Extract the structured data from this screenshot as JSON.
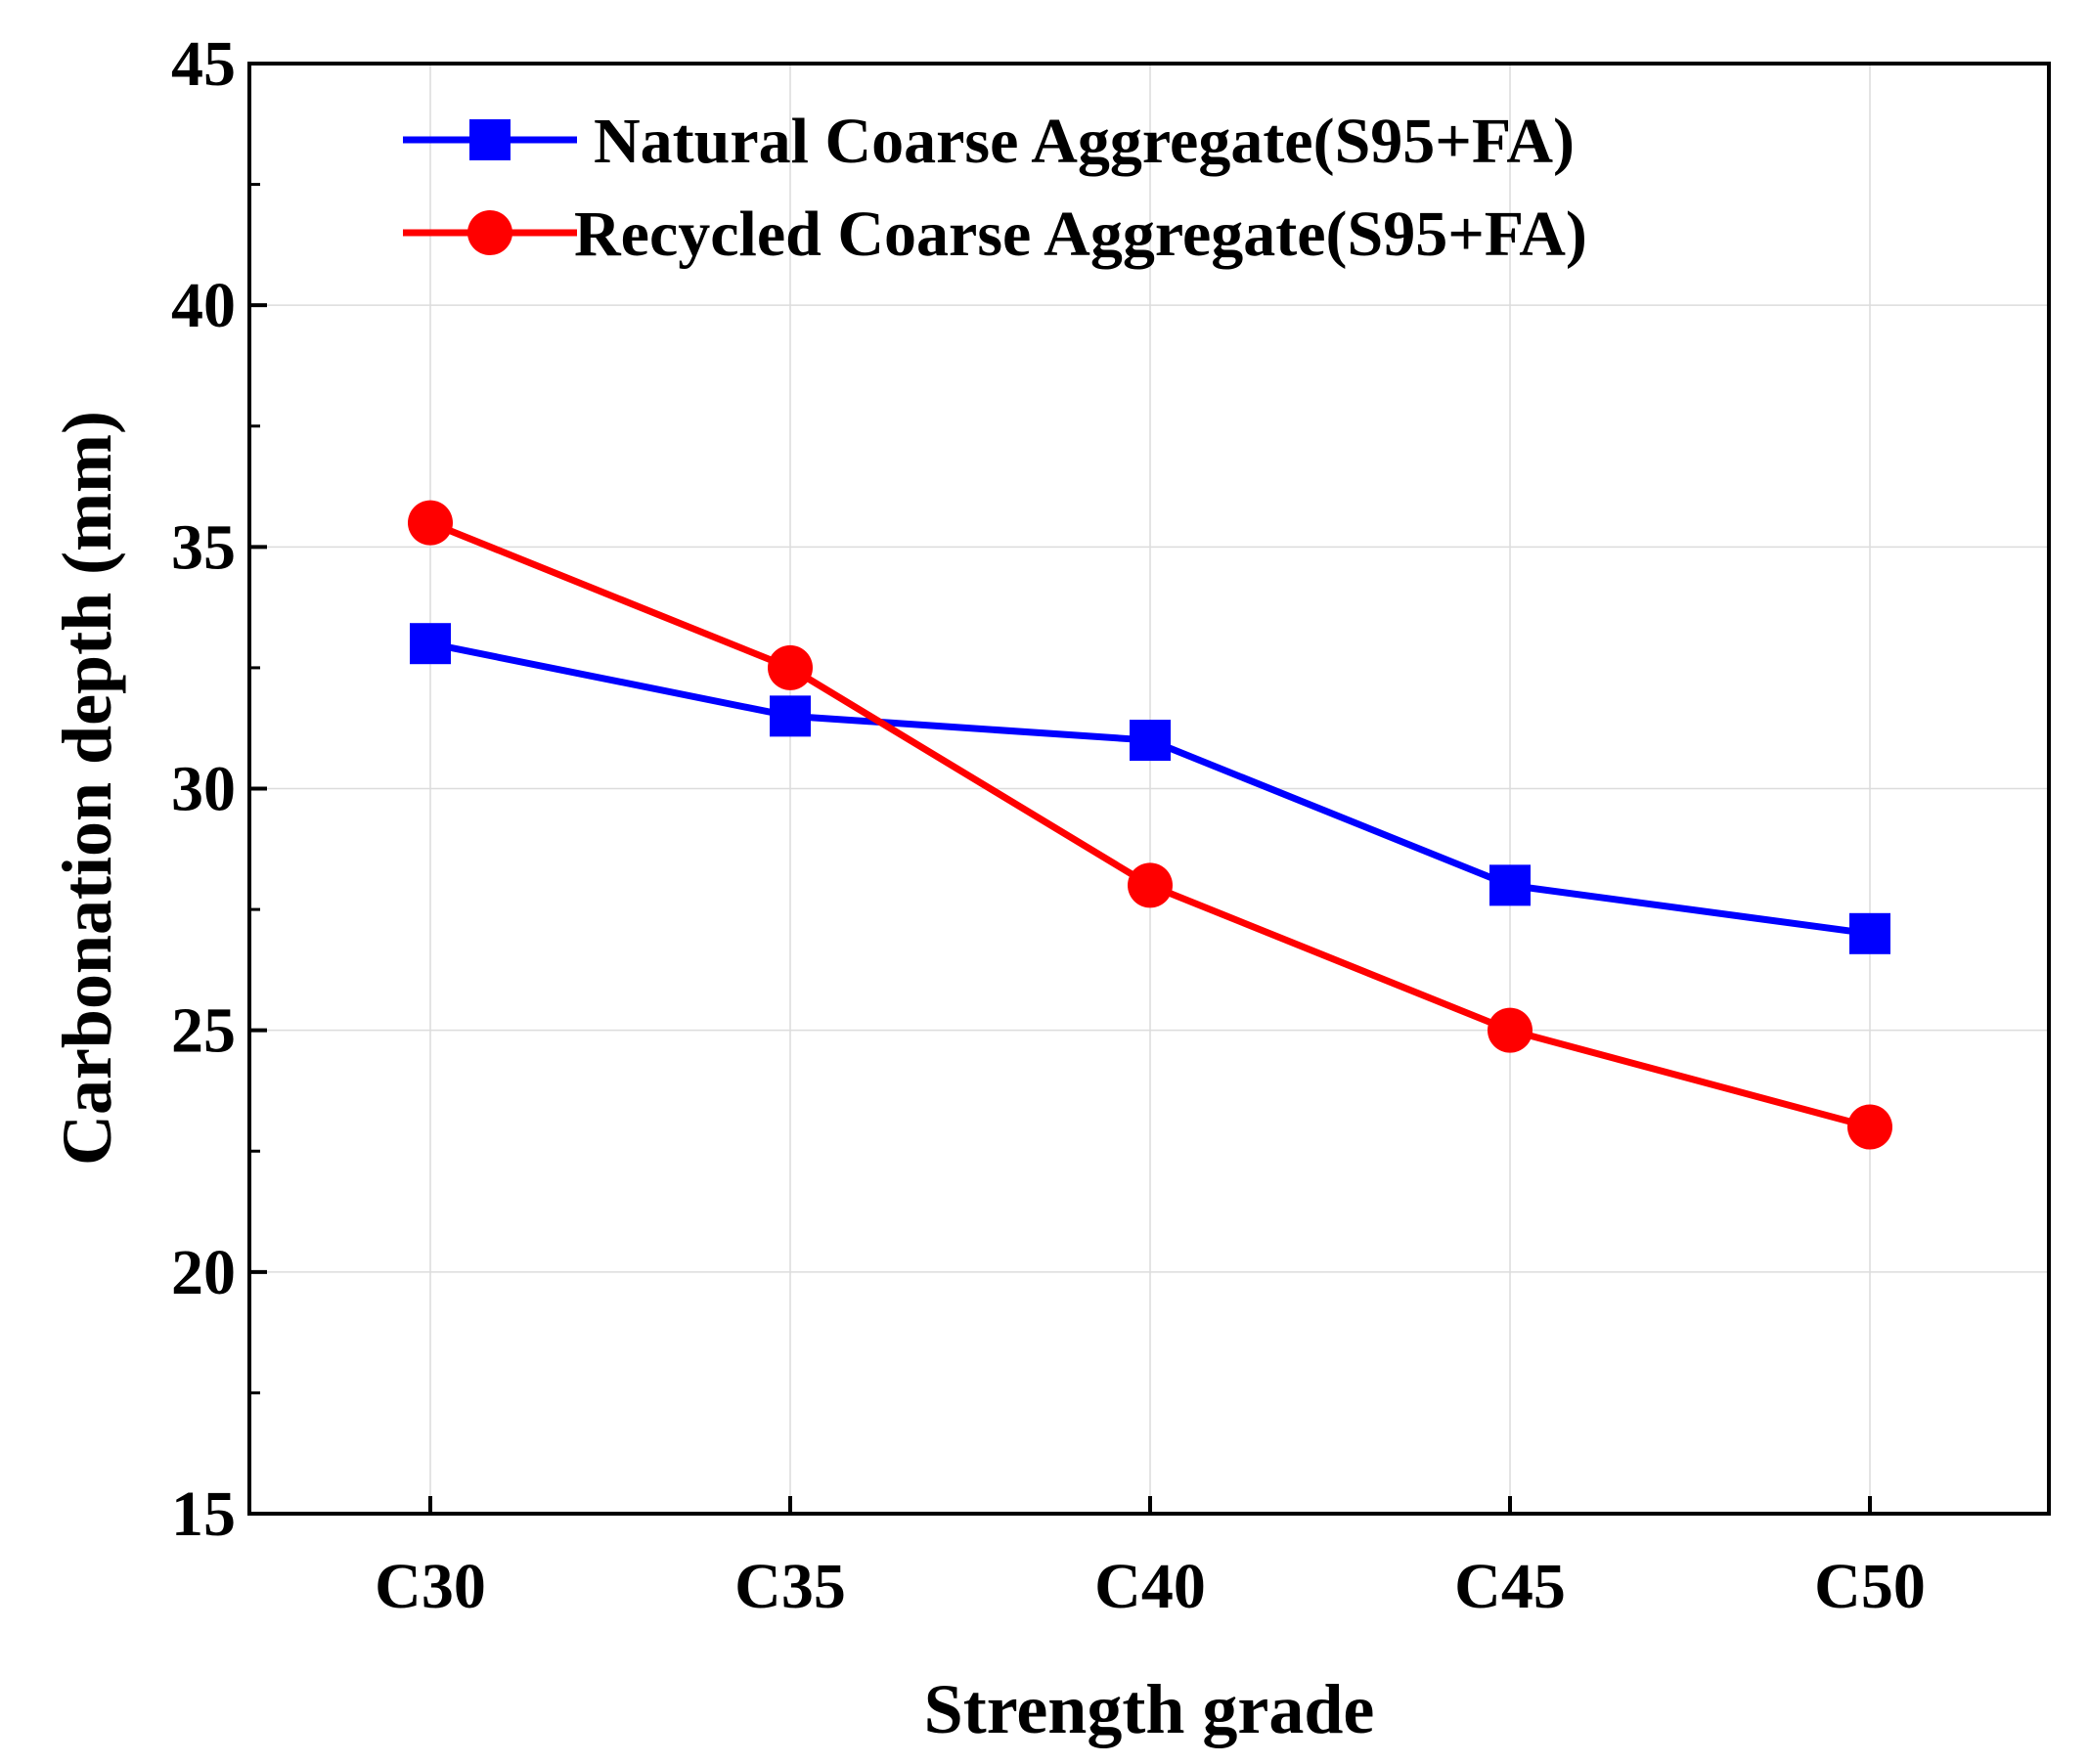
{
  "chart_data": {
    "type": "line",
    "title": "",
    "xlabel": "Strength grade",
    "ylabel": "Carbonation depth (mm)",
    "categories": [
      "C30",
      "C35",
      "C40",
      "C45",
      "C50"
    ],
    "ylim": [
      15,
      45
    ],
    "yticks": [
      15,
      20,
      25,
      30,
      35,
      40,
      45
    ],
    "grid": true,
    "legend_position": "top",
    "series": [
      {
        "name": "Natural Coarse Aggregate(S95+FA)",
        "color": "#0000ff",
        "marker": "square",
        "values": [
          33,
          31.5,
          31,
          28,
          27
        ]
      },
      {
        "name": "Recycled Coarse Aggregate(S95+FA)",
        "color": "#ff0000",
        "marker": "circle",
        "values": [
          35.5,
          32.5,
          28,
          25,
          23
        ]
      }
    ]
  }
}
